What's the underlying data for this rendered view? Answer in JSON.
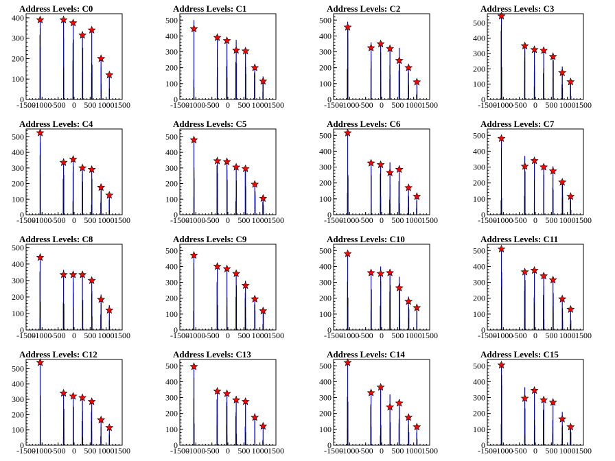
{
  "chart_data": [
    {
      "type": "bar",
      "title": "Address Levels: C0",
      "xlim": [
        -1500,
        1500
      ],
      "ylim": [
        0,
        420
      ],
      "yticks": [
        0,
        100,
        200,
        300,
        400
      ],
      "xticks": [
        -1500,
        -1000,
        -500,
        0,
        500,
        1000,
        1500
      ],
      "peaks": [
        [
          -1060,
          390
        ],
        [
          -330,
          390
        ],
        [
          -30,
          375
        ],
        [
          260,
          315
        ],
        [
          550,
          340
        ],
        [
          840,
          200
        ],
        [
          1100,
          120
        ]
      ],
      "markers": [
        [
          -1060,
          390
        ],
        [
          -330,
          390
        ],
        [
          -30,
          375
        ],
        [
          260,
          315
        ],
        [
          550,
          340
        ],
        [
          840,
          200
        ],
        [
          1100,
          120
        ]
      ]
    },
    {
      "type": "bar",
      "title": "Address Levels: C1",
      "xlim": [
        -1500,
        1500
      ],
      "ylim": [
        0,
        540
      ],
      "yticks": [
        0,
        100,
        200,
        300,
        400,
        500
      ],
      "xticks": [
        -1500,
        -1000,
        -500,
        0,
        500,
        1000,
        1500
      ],
      "peaks": [
        [
          -1060,
          500
        ],
        [
          -330,
          400
        ],
        [
          -30,
          370
        ],
        [
          260,
          375
        ],
        [
          550,
          310
        ],
        [
          840,
          200
        ],
        [
          1100,
          145
        ]
      ],
      "markers": [
        [
          -1060,
          445
        ],
        [
          -330,
          390
        ],
        [
          -30,
          370
        ],
        [
          260,
          310
        ],
        [
          550,
          305
        ],
        [
          840,
          200
        ],
        [
          1100,
          115
        ]
      ]
    },
    {
      "type": "bar",
      "title": "Address Levels: C2",
      "xlim": [
        -1500,
        1500
      ],
      "ylim": [
        0,
        540
      ],
      "yticks": [
        0,
        100,
        200,
        300,
        400,
        500
      ],
      "xticks": [
        -1500,
        -1000,
        -500,
        0,
        500,
        1000,
        1500
      ],
      "peaks": [
        [
          -1060,
          490
        ],
        [
          -330,
          360
        ],
        [
          -30,
          355
        ],
        [
          260,
          325
        ],
        [
          550,
          325
        ],
        [
          840,
          205
        ],
        [
          1100,
          130
        ]
      ],
      "markers": [
        [
          -1060,
          455
        ],
        [
          -330,
          325
        ],
        [
          -30,
          350
        ],
        [
          260,
          320
        ],
        [
          550,
          245
        ],
        [
          840,
          200
        ],
        [
          1100,
          110
        ]
      ]
    },
    {
      "type": "bar",
      "title": "Address Levels: C3",
      "xlim": [
        -1500,
        1500
      ],
      "ylim": [
        0,
        560
      ],
      "yticks": [
        0,
        100,
        200,
        300,
        400,
        500
      ],
      "xticks": [
        -1500,
        -1000,
        -500,
        0,
        500,
        1000,
        1500
      ],
      "peaks": [
        [
          -1060,
          550
        ],
        [
          -330,
          360
        ],
        [
          -30,
          335
        ],
        [
          260,
          330
        ],
        [
          550,
          300
        ],
        [
          840,
          215
        ],
        [
          1100,
          130
        ]
      ],
      "markers": [
        [
          -1060,
          545
        ],
        [
          -330,
          350
        ],
        [
          -30,
          325
        ],
        [
          260,
          320
        ],
        [
          550,
          280
        ],
        [
          840,
          175
        ],
        [
          1100,
          115
        ]
      ]
    },
    {
      "type": "bar",
      "title": "Address Levels: C4",
      "xlim": [
        -1500,
        1500
      ],
      "ylim": [
        0,
        550
      ],
      "yticks": [
        0,
        100,
        200,
        300,
        400,
        500
      ],
      "xticks": [
        -1500,
        -1000,
        -500,
        0,
        500,
        1000,
        1500
      ],
      "peaks": [
        [
          -1060,
          520
        ],
        [
          -330,
          360
        ],
        [
          -30,
          360
        ],
        [
          260,
          315
        ],
        [
          550,
          300
        ],
        [
          840,
          195
        ],
        [
          1100,
          130
        ]
      ],
      "markers": [
        [
          -1060,
          525
        ],
        [
          -330,
          335
        ],
        [
          -30,
          355
        ],
        [
          260,
          300
        ],
        [
          550,
          290
        ],
        [
          840,
          175
        ],
        [
          1100,
          125
        ]
      ]
    },
    {
      "type": "bar",
      "title": "Address Levels: C5",
      "xlim": [
        -1500,
        1500
      ],
      "ylim": [
        0,
        550
      ],
      "yticks": [
        0,
        100,
        200,
        300,
        400,
        500
      ],
      "xticks": [
        -1500,
        -1000,
        -500,
        0,
        500,
        1000,
        1500
      ],
      "peaks": [
        [
          -1060,
          490
        ],
        [
          -330,
          355
        ],
        [
          -30,
          340
        ],
        [
          260,
          320
        ],
        [
          550,
          310
        ],
        [
          840,
          200
        ],
        [
          1100,
          125
        ]
      ],
      "markers": [
        [
          -1060,
          480
        ],
        [
          -330,
          345
        ],
        [
          -30,
          340
        ],
        [
          260,
          305
        ],
        [
          550,
          295
        ],
        [
          840,
          195
        ],
        [
          1100,
          105
        ]
      ]
    },
    {
      "type": "bar",
      "title": "Address Levels: C6",
      "xlim": [
        -1500,
        1500
      ],
      "ylim": [
        0,
        540
      ],
      "yticks": [
        0,
        100,
        200,
        300,
        400,
        500
      ],
      "xticks": [
        -1500,
        -1000,
        -500,
        0,
        500,
        1000,
        1500
      ],
      "peaks": [
        [
          -1060,
          520
        ],
        [
          -330,
          340
        ],
        [
          -30,
          330
        ],
        [
          260,
          330
        ],
        [
          550,
          310
        ],
        [
          840,
          180
        ],
        [
          1100,
          120
        ]
      ],
      "markers": [
        [
          -1060,
          515
        ],
        [
          -330,
          325
        ],
        [
          -30,
          315
        ],
        [
          260,
          265
        ],
        [
          550,
          285
        ],
        [
          840,
          170
        ],
        [
          1100,
          115
        ]
      ]
    },
    {
      "type": "bar",
      "title": "Address Levels: C7",
      "xlim": [
        -1500,
        1500
      ],
      "ylim": [
        0,
        540
      ],
      "yticks": [
        0,
        100,
        200,
        300,
        400,
        500
      ],
      "xticks": [
        -1500,
        -1000,
        -500,
        0,
        500,
        1000,
        1500
      ],
      "peaks": [
        [
          -1060,
          495
        ],
        [
          -330,
          370
        ],
        [
          -30,
          350
        ],
        [
          260,
          310
        ],
        [
          550,
          305
        ],
        [
          840,
          220
        ],
        [
          1100,
          125
        ]
      ],
      "markers": [
        [
          -1060,
          480
        ],
        [
          -330,
          305
        ],
        [
          -30,
          340
        ],
        [
          260,
          300
        ],
        [
          550,
          275
        ],
        [
          840,
          205
        ],
        [
          1100,
          115
        ]
      ]
    },
    {
      "type": "bar",
      "title": "Address Levels: C8",
      "xlim": [
        -1500,
        1500
      ],
      "ylim": [
        0,
        520
      ],
      "yticks": [
        0,
        100,
        200,
        300,
        400,
        500
      ],
      "xticks": [
        -1500,
        -1000,
        -500,
        0,
        500,
        1000,
        1500
      ],
      "peaks": [
        [
          -1060,
          460
        ],
        [
          -330,
          365
        ],
        [
          -30,
          345
        ],
        [
          260,
          340
        ],
        [
          550,
          310
        ],
        [
          840,
          215
        ],
        [
          1100,
          150
        ]
      ],
      "markers": [
        [
          -1060,
          440
        ],
        [
          -330,
          335
        ],
        [
          -30,
          335
        ],
        [
          260,
          335
        ],
        [
          550,
          300
        ],
        [
          840,
          185
        ],
        [
          1100,
          120
        ]
      ]
    },
    {
      "type": "bar",
      "title": "Address Levels: C9",
      "xlim": [
        -1500,
        1500
      ],
      "ylim": [
        0,
        540
      ],
      "yticks": [
        0,
        100,
        200,
        300,
        400,
        500
      ],
      "xticks": [
        -1500,
        -1000,
        -500,
        0,
        500,
        1000,
        1500
      ],
      "peaks": [
        [
          -1060,
          480
        ],
        [
          -330,
          410
        ],
        [
          -30,
          395
        ],
        [
          260,
          360
        ],
        [
          550,
          310
        ],
        [
          840,
          200
        ],
        [
          1100,
          140
        ]
      ],
      "markers": [
        [
          -1060,
          470
        ],
        [
          -330,
          400
        ],
        [
          -30,
          385
        ],
        [
          260,
          355
        ],
        [
          550,
          280
        ],
        [
          840,
          195
        ],
        [
          1100,
          120
        ]
      ]
    },
    {
      "type": "bar",
      "title": "Address Levels: C10",
      "xlim": [
        -1500,
        1500
      ],
      "ylim": [
        0,
        540
      ],
      "yticks": [
        0,
        100,
        200,
        300,
        400,
        500
      ],
      "xticks": [
        -1500,
        -1000,
        -500,
        0,
        500,
        1000,
        1500
      ],
      "peaks": [
        [
          -1060,
          490
        ],
        [
          -330,
          370
        ],
        [
          -30,
          400
        ],
        [
          260,
          370
        ],
        [
          550,
          335
        ],
        [
          840,
          210
        ],
        [
          1100,
          150
        ]
      ],
      "markers": [
        [
          -1060,
          480
        ],
        [
          -330,
          360
        ],
        [
          -30,
          355
        ],
        [
          260,
          360
        ],
        [
          550,
          265
        ],
        [
          840,
          180
        ],
        [
          1100,
          140
        ]
      ]
    },
    {
      "type": "bar",
      "title": "Address Levels: C11",
      "xlim": [
        -1500,
        1500
      ],
      "ylim": [
        0,
        540
      ],
      "yticks": [
        0,
        100,
        200,
        300,
        400,
        500
      ],
      "xticks": [
        -1500,
        -1000,
        -500,
        0,
        500,
        1000,
        1500
      ],
      "peaks": [
        [
          -1060,
          520
        ],
        [
          -330,
          375
        ],
        [
          -30,
          375
        ],
        [
          260,
          350
        ],
        [
          550,
          320
        ],
        [
          840,
          190
        ],
        [
          1100,
          145
        ]
      ],
      "markers": [
        [
          -1060,
          510
        ],
        [
          -330,
          365
        ],
        [
          -30,
          375
        ],
        [
          260,
          340
        ],
        [
          550,
          315
        ],
        [
          840,
          195
        ],
        [
          1100,
          130
        ]
      ]
    },
    {
      "type": "bar",
      "title": "Address Levels: C12",
      "xlim": [
        -1500,
        1500
      ],
      "ylim": [
        0,
        560
      ],
      "yticks": [
        0,
        100,
        200,
        300,
        400,
        500
      ],
      "xticks": [
        -1500,
        -1000,
        -500,
        0,
        500,
        1000,
        1500
      ],
      "peaks": [
        [
          -1060,
          545
        ],
        [
          -330,
          345
        ],
        [
          -30,
          320
        ],
        [
          260,
          310
        ],
        [
          550,
          290
        ],
        [
          840,
          180
        ],
        [
          1100,
          120
        ]
      ],
      "markers": [
        [
          -1060,
          540
        ],
        [
          -330,
          340
        ],
        [
          -30,
          320
        ],
        [
          260,
          310
        ],
        [
          550,
          285
        ],
        [
          840,
          165
        ],
        [
          1100,
          115
        ]
      ]
    },
    {
      "type": "bar",
      "title": "Address Levels: C13",
      "xlim": [
        -1500,
        1500
      ],
      "ylim": [
        0,
        540
      ],
      "yticks": [
        0,
        100,
        200,
        300,
        400,
        500
      ],
      "xticks": [
        -1500,
        -1000,
        -500,
        0,
        500,
        1000,
        1500
      ],
      "peaks": [
        [
          -1060,
          500
        ],
        [
          -330,
          345
        ],
        [
          -30,
          335
        ],
        [
          260,
          310
        ],
        [
          550,
          290
        ],
        [
          840,
          200
        ],
        [
          1100,
          130
        ]
      ],
      "markers": [
        [
          -1060,
          495
        ],
        [
          -330,
          340
        ],
        [
          -30,
          325
        ],
        [
          260,
          285
        ],
        [
          550,
          275
        ],
        [
          840,
          175
        ],
        [
          1100,
          120
        ]
      ]
    },
    {
      "type": "bar",
      "title": "Address Levels: C14",
      "xlim": [
        -1500,
        1500
      ],
      "ylim": [
        0,
        540
      ],
      "yticks": [
        0,
        100,
        200,
        300,
        400,
        500
      ],
      "xticks": [
        -1500,
        -1000,
        -500,
        0,
        500,
        1000,
        1500
      ],
      "peaks": [
        [
          -1060,
          525
        ],
        [
          -330,
          345
        ],
        [
          -30,
          360
        ],
        [
          260,
          320
        ],
        [
          550,
          290
        ],
        [
          840,
          185
        ],
        [
          1100,
          125
        ]
      ],
      "markers": [
        [
          -1060,
          520
        ],
        [
          -330,
          330
        ],
        [
          -30,
          365
        ],
        [
          260,
          240
        ],
        [
          550,
          265
        ],
        [
          840,
          175
        ],
        [
          1100,
          115
        ]
      ]
    },
    {
      "type": "bar",
      "title": "Address Levels: C15",
      "xlim": [
        -1500,
        1500
      ],
      "ylim": [
        0,
        540
      ],
      "yticks": [
        0,
        100,
        200,
        300,
        400,
        500
      ],
      "xticks": [
        -1500,
        -1000,
        -500,
        0,
        500,
        1000,
        1500
      ],
      "peaks": [
        [
          -1060,
          510
        ],
        [
          -330,
          365
        ],
        [
          -30,
          345
        ],
        [
          260,
          305
        ],
        [
          550,
          290
        ],
        [
          840,
          210
        ],
        [
          1100,
          130
        ]
      ],
      "markers": [
        [
          -1060,
          505
        ],
        [
          -330,
          295
        ],
        [
          -30,
          345
        ],
        [
          260,
          285
        ],
        [
          550,
          270
        ],
        [
          840,
          165
        ],
        [
          1100,
          115
        ]
      ]
    }
  ]
}
